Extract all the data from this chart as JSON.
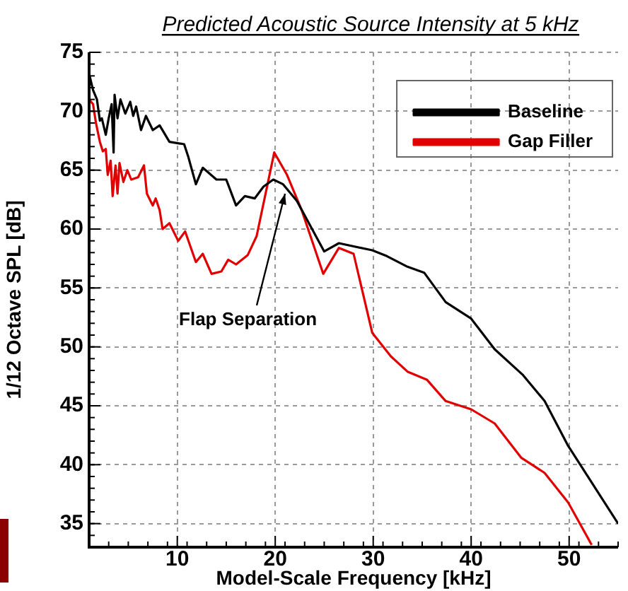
{
  "chart_data": {
    "type": "line",
    "title": "Predicted Acoustic Source Intensity at 5 kHz",
    "xlabel": "Model-Scale Frequency [kHz]",
    "ylabel": "1/12 Octave SPL [dB]",
    "xlim": [
      1,
      55
    ],
    "xticks": [
      10,
      20,
      30,
      40,
      50
    ],
    "ylim": [
      33,
      75
    ],
    "yticks": [
      35,
      40,
      45,
      50,
      55,
      60,
      65,
      70,
      75
    ],
    "grid": true,
    "legend": "top right",
    "marker": "none",
    "line_style": "solid",
    "annotations": [
      {
        "text": "Flap Separation",
        "x": 21,
        "y": 63
      }
    ],
    "series": [
      {
        "name": "Baseline",
        "color": "#000000",
        "x": [
          1.0,
          1.4,
          1.8,
          2.1,
          2.3,
          2.7,
          3.0,
          3.3,
          3.5,
          3.6,
          3.9,
          4.2,
          4.7,
          5.2,
          5.5,
          5.8,
          6.3,
          6.8,
          7.5,
          8.2,
          9.2,
          10.7,
          11.1,
          11.9,
          12.6,
          14.0,
          15.0,
          16.0,
          16.9,
          17.9,
          18.8,
          19.8,
          20.8,
          22.2,
          25.0,
          26.5,
          29.9,
          31.4,
          33.5,
          35.2,
          37.4,
          40.0,
          42.4,
          45.3,
          47.5,
          49.9,
          55.0
        ],
        "values": [
          73.2,
          71.8,
          71.0,
          69.2,
          69.4,
          68.0,
          69.4,
          70.6,
          66.5,
          71.4,
          69.4,
          71.0,
          69.8,
          70.8,
          69.6,
          70.4,
          68.4,
          69.6,
          68.4,
          68.8,
          67.4,
          67.2,
          66.2,
          63.8,
          65.2,
          64.2,
          64.2,
          62.0,
          62.8,
          62.6,
          63.6,
          64.2,
          63.8,
          62.4,
          58.1,
          58.8,
          58.2,
          57.7,
          56.8,
          56.3,
          53.8,
          52.4,
          49.8,
          47.6,
          45.4,
          41.6,
          35.0
        ]
      },
      {
        "name": "Gap Filler",
        "color": "#e00000",
        "x": [
          1.0,
          1.4,
          1.7,
          2.1,
          2.4,
          2.7,
          2.9,
          3.2,
          3.4,
          3.7,
          3.9,
          4.1,
          4.5,
          4.9,
          5.3,
          6.0,
          6.6,
          6.9,
          7.5,
          7.8,
          8.2,
          8.5,
          9.2,
          10.1,
          10.8,
          11.9,
          12.6,
          13.5,
          14.5,
          15.2,
          16.0,
          17.2,
          18.1,
          19.9,
          21.2,
          22.7,
          24.9,
          26.5,
          28.0,
          29.9,
          31.8,
          33.5,
          35.5,
          37.4,
          40.0,
          42.4,
          45.1,
          47.5,
          49.9,
          52.3
        ],
        "values": [
          71.0,
          70.6,
          69.0,
          67.4,
          66.6,
          66.8,
          64.6,
          65.8,
          62.8,
          65.4,
          63.0,
          65.6,
          64.0,
          65.0,
          64.2,
          64.4,
          65.4,
          63.0,
          62.0,
          62.6,
          61.6,
          60.0,
          60.5,
          59.0,
          59.8,
          57.2,
          57.9,
          56.2,
          56.4,
          57.4,
          57.0,
          57.8,
          59.4,
          66.5,
          64.6,
          61.6,
          56.2,
          58.4,
          57.9,
          51.2,
          49.2,
          47.9,
          47.2,
          45.4,
          44.7,
          43.5,
          40.6,
          39.3,
          36.8,
          33.2
        ]
      }
    ]
  }
}
